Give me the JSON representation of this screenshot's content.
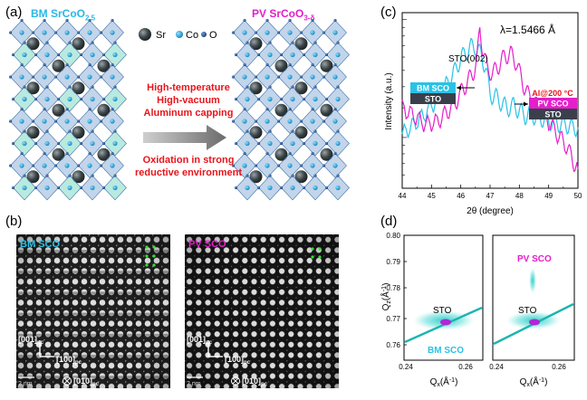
{
  "panel_a": {
    "label": "(a)",
    "left_title_main": "BM SrCoO",
    "left_title_sub": "2.5",
    "right_title_main": "PV SrCoO",
    "right_title_sub": "3-δ",
    "legend": {
      "sr": "Sr",
      "co": "Co",
      "o": "O"
    },
    "arrow_top_lines": [
      "High-temperature",
      "High-vacuum",
      "Aluminum capping"
    ],
    "arrow_bottom_lines": [
      "Oxidation in strong",
      "reductive environment"
    ],
    "colors": {
      "bm": "#29b8e5",
      "pv": "#e020c8",
      "process": "#e8141a"
    }
  },
  "panel_b": {
    "label": "(b)",
    "left_tag": "BM SCO",
    "right_tag": "PV SCO",
    "dir_001": "[001]",
    "dir_100": "[100]",
    "dir_010": "[010]",
    "pc": "pc",
    "scale": "2 nm"
  },
  "panel_c": {
    "label": "(c)",
    "lambda": "λ=1.5466 Å",
    "peak_label": "STO(002)",
    "box_bm_top": "BM SCO",
    "box_bm_bottom": "STO",
    "box_pv_anneal": "Al@200 °C",
    "box_pv_top": "PV SCO",
    "box_pv_bottom": "STO",
    "ylabel": "Intensity (a.u.)",
    "xlabel": "2θ (degree)",
    "xticks": [
      "44",
      "45",
      "46",
      "47",
      "48",
      "49",
      "50"
    ]
  },
  "panel_d": {
    "label": "(d)",
    "ylabel_main": "Q",
    "ylabel_sub": "z",
    "ylabel_unit": "(Å",
    "ylabel_exp": "-1",
    "ylabel_close": ")",
    "xlabel_main": "Q",
    "xlabel_sub": "x",
    "xlabel_unit": "(Å",
    "xlabel_exp": "-1",
    "xlabel_close": ")",
    "yticks": [
      "0.80",
      "0.79",
      "0.78",
      "0.77",
      "0.76"
    ],
    "xticks_left": [
      "0.24",
      "0.26"
    ],
    "xticks_right": [
      "0.24",
      "0.26"
    ],
    "left_sto": "STO",
    "left_bm": "BM SCO",
    "right_sto": "STO",
    "right_pv": "PV SCO"
  },
  "chart_data": {
    "type": "line",
    "xlabel": "2θ (degree)",
    "ylabel": "Intensity (a.u.)",
    "xlim": [
      44,
      50
    ],
    "yscale": "log",
    "series": [
      {
        "name": "BM SCO",
        "color": "#29c2e6",
        "x": [
          44.0,
          44.4,
          44.8,
          45.2,
          45.5,
          45.8,
          46.0,
          46.2,
          46.35,
          46.5,
          46.6,
          46.7,
          46.85,
          47.0,
          47.2,
          47.4,
          47.6,
          47.8,
          48.0,
          48.2,
          48.4,
          48.6,
          48.8,
          49.0,
          49.2,
          49.4,
          49.6,
          49.8,
          50.0
        ],
        "y": [
          2.1,
          2.4,
          2.8,
          3.4,
          4.1,
          5.0,
          5.9,
          6.5,
          6.9,
          7.0,
          6.5,
          6.2,
          5.2,
          3.6,
          3.5,
          3.2,
          3.0,
          3.1,
          2.9,
          2.7,
          2.8,
          2.6,
          2.6,
          2.5,
          2.5,
          2.4,
          2.4,
          2.3,
          2.3
        ]
      },
      {
        "name": "PV SCO",
        "color": "#e61ecc",
        "x": [
          44.0,
          44.4,
          44.8,
          45.2,
          45.5,
          45.8,
          46.0,
          46.2,
          46.4,
          46.55,
          46.65,
          46.75,
          46.9,
          47.1,
          47.3,
          47.5,
          47.7,
          47.9,
          48.1,
          48.3,
          48.6,
          49.0,
          49.3,
          49.6,
          49.8,
          50.0
        ],
        "y": [
          3.0,
          2.7,
          2.4,
          2.5,
          2.8,
          3.2,
          3.7,
          4.2,
          4.8,
          5.6,
          8.9,
          6.8,
          5.1,
          4.8,
          5.4,
          6.1,
          6.3,
          5.6,
          4.3,
          3.6,
          3.1,
          2.5,
          2.1,
          1.8,
          1.5,
          1.3
        ]
      }
    ]
  }
}
